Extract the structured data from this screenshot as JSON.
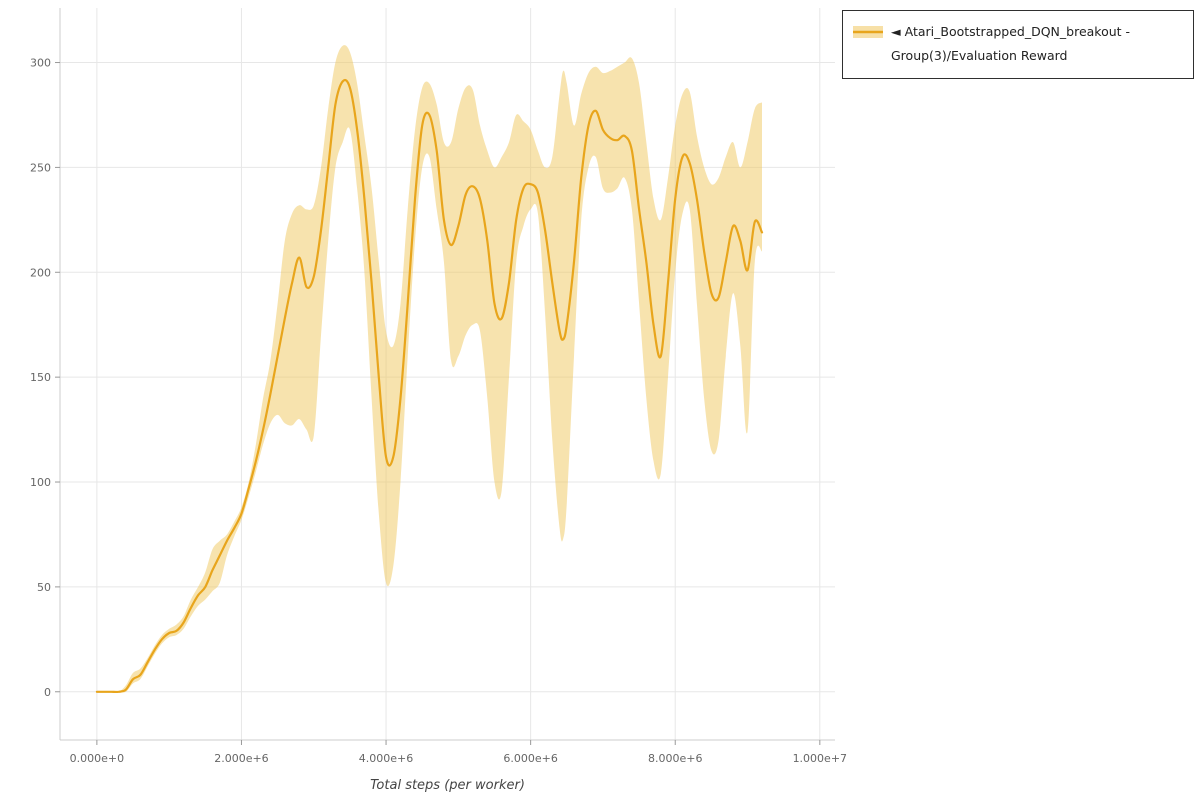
{
  "legend": {
    "marker": "◄",
    "label": "Atari_Bootstrapped_DQN_breakout - Group(3)/Evaluation Reward"
  },
  "chart_data": {
    "type": "line",
    "title": "",
    "xlabel": "Total steps (per worker)",
    "ylabel": "",
    "grid": true,
    "legend_position": "top-right-outside",
    "xlim_e6": [
      -0.51,
      10.21
    ],
    "ylim": [
      -23,
      326
    ],
    "x_ticks": [
      {
        "v": 0,
        "label": "0.000e+0"
      },
      {
        "v": 2,
        "label": "2.000e+6"
      },
      {
        "v": 4,
        "label": "4.000e+6"
      },
      {
        "v": 6,
        "label": "6.000e+6"
      },
      {
        "v": 8,
        "label": "8.000e+6"
      },
      {
        "v": 10,
        "label": "1.000e+7"
      }
    ],
    "y_ticks": [
      0,
      50,
      100,
      150,
      200,
      250,
      300
    ],
    "colors": {
      "grid": "#e7e7e7",
      "tick_text": "#666666",
      "tick_mark": "#999999",
      "spine": "#cccccc",
      "axis_label": "#444444",
      "legend_border": "#2f2f2f"
    },
    "series": [
      {
        "name": "Atari_Bootstrapped_DQN_breakout - Group(3)/Evaluation Reward",
        "color": "#e8a51c",
        "band_color": "#f0c75e",
        "band_opacity": 0.5,
        "x_e6": [
          0,
          0.1,
          0.2,
          0.3,
          0.4,
          0.5,
          0.6,
          0.7,
          0.8,
          0.9,
          1,
          1.1,
          1.2,
          1.3,
          1.4,
          1.5,
          1.6,
          1.7,
          1.8,
          1.9,
          2,
          2.1,
          2.2,
          2.3,
          2.4,
          2.5,
          2.6,
          2.7,
          2.8,
          2.9,
          3,
          3.1,
          3.2,
          3.3,
          3.4,
          3.5,
          3.6,
          3.7,
          3.8,
          3.9,
          4,
          4.1,
          4.2,
          4.3,
          4.4,
          4.5,
          4.6,
          4.7,
          4.8,
          4.9,
          5,
          5.1,
          5.2,
          5.3,
          5.4,
          5.5,
          5.6,
          5.7,
          5.8,
          5.9,
          6,
          6.1,
          6.2,
          6.3,
          6.4,
          6.45,
          6.5,
          6.6,
          6.7,
          6.8,
          6.9,
          7,
          7.1,
          7.2,
          7.3,
          7.4,
          7.5,
          7.6,
          7.7,
          7.8,
          7.9,
          8,
          8.1,
          8.2,
          8.3,
          8.4,
          8.5,
          8.6,
          8.7,
          8.8,
          8.9,
          9,
          9.1,
          9.2
        ],
        "mean": [
          0,
          0,
          0,
          0,
          1,
          6,
          8,
          14,
          20,
          25,
          28,
          29,
          33,
          40,
          46,
          50,
          58,
          65,
          72,
          78,
          85,
          97,
          110,
          125,
          142,
          160,
          178,
          195,
          207,
          193,
          198,
          220,
          250,
          280,
          291,
          288,
          268,
          235,
          195,
          150,
          112,
          112,
          140,
          185,
          235,
          270,
          275,
          258,
          225,
          213,
          222,
          237,
          241,
          235,
          215,
          185,
          178,
          195,
          225,
          240,
          242,
          238,
          220,
          195,
          172,
          168,
          175,
          205,
          245,
          270,
          277,
          268,
          264,
          263,
          265,
          258,
          230,
          205,
          175,
          160,
          195,
          235,
          255,
          252,
          235,
          210,
          190,
          188,
          205,
          222,
          215,
          201,
          224,
          219
        ],
        "lo": [
          0,
          0,
          0,
          0,
          0,
          4,
          6,
          12,
          18,
          23,
          26,
          27,
          30,
          36,
          41,
          44,
          48,
          52,
          65,
          74,
          82,
          93,
          105,
          118,
          128,
          132,
          128,
          127,
          130,
          125,
          122,
          170,
          215,
          250,
          262,
          268,
          240,
          200,
          140,
          85,
          52,
          60,
          100,
          160,
          215,
          250,
          255,
          230,
          205,
          158,
          160,
          170,
          175,
          172,
          140,
          100,
          96,
          150,
          205,
          222,
          230,
          228,
          180,
          120,
          78,
          73,
          90,
          160,
          225,
          250,
          255,
          240,
          238,
          240,
          245,
          230,
          185,
          140,
          110,
          104,
          150,
          200,
          228,
          230,
          185,
          140,
          115,
          120,
          160,
          190,
          165,
          124,
          205,
          210
        ],
        "hi": [
          0,
          0,
          0,
          0,
          3,
          9,
          11,
          16,
          22,
          27,
          30,
          32,
          36,
          44,
          50,
          57,
          68,
          72,
          75,
          81,
          88,
          100,
          118,
          140,
          158,
          185,
          215,
          228,
          232,
          230,
          232,
          250,
          278,
          300,
          308,
          305,
          290,
          265,
          240,
          205,
          172,
          165,
          185,
          230,
          268,
          288,
          290,
          280,
          262,
          262,
          278,
          288,
          287,
          270,
          258,
          250,
          255,
          262,
          275,
          272,
          268,
          258,
          250,
          255,
          285,
          296,
          290,
          270,
          285,
          295,
          298,
          295,
          296,
          298,
          300,
          302,
          290,
          262,
          235,
          225,
          245,
          270,
          285,
          286,
          265,
          250,
          242,
          245,
          255,
          262,
          250,
          262,
          278,
          281
        ]
      }
    ]
  }
}
